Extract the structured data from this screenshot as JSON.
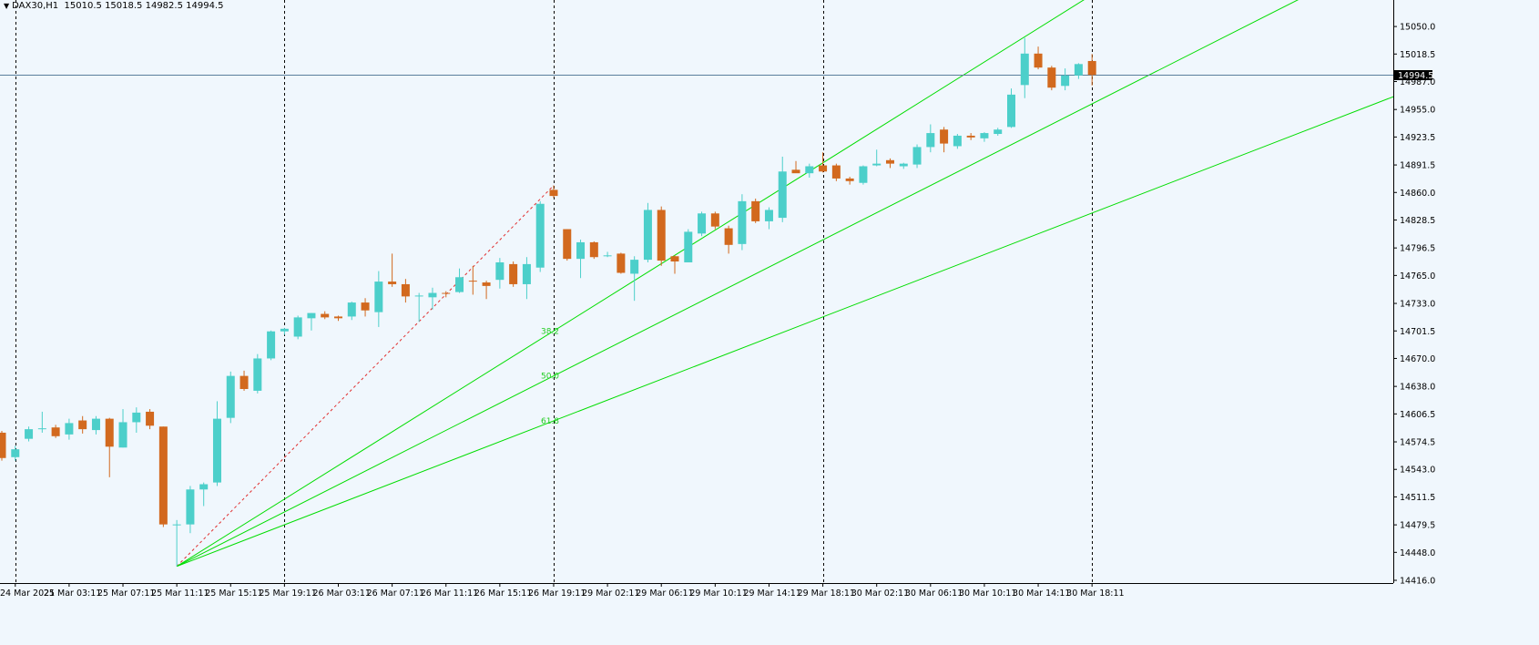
{
  "header": {
    "symbol": "DAX30,H1",
    "ohlc": "15010.5 15018.5 14982.5 14994.5",
    "menu_icon": "triangle-down-icon"
  },
  "colors": {
    "background": "#f0f7fd",
    "bull": "#4ccfca",
    "bear": "#d2691e",
    "fan": "#00dd00",
    "fib_label": "#22cc22",
    "trend_dashed": "#e03030",
    "price_line": "#5a7f9c",
    "axis": "#000000"
  },
  "chart_data": {
    "type": "candlestick",
    "ylim": [
      14416,
      15072
    ],
    "price_line": 14994.5,
    "price_label": "14994.5",
    "y_ticks": [
      "15050.0",
      "15018.5",
      "14987.0",
      "14955.0",
      "14923.5",
      "14891.5",
      "14860.0",
      "14828.5",
      "14796.5",
      "14765.0",
      "14733.0",
      "14701.5",
      "14670.0",
      "14638.0",
      "14606.5",
      "14574.5",
      "14543.0",
      "14511.5",
      "14479.5",
      "14448.0",
      "14416.0"
    ],
    "x_ticks": [
      "24 Mar 2021",
      "25 Mar 03:11",
      "25 Mar 07:11",
      "25 Mar 11:11",
      "25 Mar 15:11",
      "25 Mar 19:11",
      "26 Mar 03:11",
      "26 Mar 07:11",
      "26 Mar 11:11",
      "26 Mar 15:11",
      "26 Mar 19:11",
      "29 Mar 02:11",
      "29 Mar 06:11",
      "29 Mar 10:11",
      "29 Mar 14:11",
      "29 Mar 18:11",
      "30 Mar 02:11",
      "30 Mar 06:11",
      "30 Mar 10:11",
      "30 Mar 14:11",
      "30 Mar 18:11"
    ],
    "period_separators": [
      1,
      21,
      41,
      61,
      81
    ],
    "candles": [
      {
        "o": 14585,
        "h": 14587,
        "l": 14553,
        "c": 14556
      },
      {
        "o": 14557,
        "h": 14570,
        "l": 14553,
        "c": 14566
      },
      {
        "o": 14578,
        "h": 14592,
        "l": 14575,
        "c": 14589
      },
      {
        "o": 14589,
        "h": 14609,
        "l": 14585,
        "c": 14590
      },
      {
        "o": 14591,
        "h": 14594,
        "l": 14579,
        "c": 14581
      },
      {
        "o": 14583,
        "h": 14601,
        "l": 14577,
        "c": 14596
      },
      {
        "o": 14599,
        "h": 14604,
        "l": 14584,
        "c": 14589
      },
      {
        "o": 14588,
        "h": 14604,
        "l": 14583,
        "c": 14601
      },
      {
        "o": 14601,
        "h": 14602,
        "l": 14534,
        "c": 14569
      },
      {
        "o": 14568,
        "h": 14612,
        "l": 14568,
        "c": 14597
      },
      {
        "o": 14597,
        "h": 14614,
        "l": 14585,
        "c": 14608
      },
      {
        "o": 14609,
        "h": 14612,
        "l": 14589,
        "c": 14593
      },
      {
        "o": 14592,
        "h": 14592,
        "l": 14477,
        "c": 14480
      },
      {
        "o": 14480,
        "h": 14485,
        "l": 14432,
        "c": 14480
      },
      {
        "o": 14480,
        "h": 14524,
        "l": 14470,
        "c": 14520
      },
      {
        "o": 14520,
        "h": 14528,
        "l": 14501,
        "c": 14526
      },
      {
        "o": 14528,
        "h": 14621,
        "l": 14524,
        "c": 14601
      },
      {
        "o": 14602,
        "h": 14655,
        "l": 14596,
        "c": 14650
      },
      {
        "o": 14650,
        "h": 14656,
        "l": 14633,
        "c": 14635
      },
      {
        "o": 14633,
        "h": 14675,
        "l": 14630,
        "c": 14670
      },
      {
        "o": 14670,
        "h": 14702,
        "l": 14668,
        "c": 14701
      },
      {
        "o": 14701,
        "h": 14705,
        "l": 14697,
        "c": 14704
      },
      {
        "o": 14695,
        "h": 14719,
        "l": 14692,
        "c": 14717
      },
      {
        "o": 14716,
        "h": 14722,
        "l": 14702,
        "c": 14722
      },
      {
        "o": 14721,
        "h": 14724,
        "l": 14715,
        "c": 14717
      },
      {
        "o": 14718,
        "h": 14719,
        "l": 14713,
        "c": 14716
      },
      {
        "o": 14718,
        "h": 14735,
        "l": 14714,
        "c": 14734
      },
      {
        "o": 14734,
        "h": 14739,
        "l": 14718,
        "c": 14725
      },
      {
        "o": 14723,
        "h": 14770,
        "l": 14706,
        "c": 14758
      },
      {
        "o": 14758,
        "h": 14790,
        "l": 14752,
        "c": 14755
      },
      {
        "o": 14755,
        "h": 14761,
        "l": 14734,
        "c": 14741
      },
      {
        "o": 14741,
        "h": 14745,
        "l": 14712,
        "c": 14742
      },
      {
        "o": 14740,
        "h": 14751,
        "l": 14726,
        "c": 14745
      },
      {
        "o": 14745,
        "h": 14747,
        "l": 14740,
        "c": 14744
      },
      {
        "o": 14746,
        "h": 14773,
        "l": 14745,
        "c": 14763
      },
      {
        "o": 14759,
        "h": 14776,
        "l": 14743,
        "c": 14758
      },
      {
        "o": 14757,
        "h": 14759,
        "l": 14738,
        "c": 14753
      },
      {
        "o": 14760,
        "h": 14785,
        "l": 14750,
        "c": 14780
      },
      {
        "o": 14778,
        "h": 14781,
        "l": 14752,
        "c": 14755
      },
      {
        "o": 14755,
        "h": 14786,
        "l": 14738,
        "c": 14778
      },
      {
        "o": 14774,
        "h": 14850,
        "l": 14769,
        "c": 14847
      },
      {
        "o": 14863,
        "h": 14868,
        "l": 14854,
        "c": 14856
      },
      {
        "o": 14818,
        "h": 14818,
        "l": 14782,
        "c": 14784
      },
      {
        "o": 14784,
        "h": 14806,
        "l": 14762,
        "c": 14803
      },
      {
        "o": 14803,
        "h": 14804,
        "l": 14784,
        "c": 14786
      },
      {
        "o": 14788,
        "h": 14792,
        "l": 14786,
        "c": 14788
      },
      {
        "o": 14790,
        "h": 14791,
        "l": 14767,
        "c": 14768
      },
      {
        "o": 14767,
        "h": 14787,
        "l": 14736,
        "c": 14783
      },
      {
        "o": 14783,
        "h": 14848,
        "l": 14780,
        "c": 14840
      },
      {
        "o": 14840,
        "h": 14844,
        "l": 14776,
        "c": 14782
      },
      {
        "o": 14787,
        "h": 14788,
        "l": 14767,
        "c": 14781
      },
      {
        "o": 14780,
        "h": 14818,
        "l": 14780,
        "c": 14815
      },
      {
        "o": 14813,
        "h": 14838,
        "l": 14810,
        "c": 14836
      },
      {
        "o": 14836,
        "h": 14838,
        "l": 14818,
        "c": 14821
      },
      {
        "o": 14819,
        "h": 14822,
        "l": 14790,
        "c": 14800
      },
      {
        "o": 14801,
        "h": 14858,
        "l": 14794,
        "c": 14850
      },
      {
        "o": 14850,
        "h": 14853,
        "l": 14825,
        "c": 14827
      },
      {
        "o": 14827,
        "h": 14843,
        "l": 14818,
        "c": 14840
      },
      {
        "o": 14831,
        "h": 14901,
        "l": 14826,
        "c": 14884
      },
      {
        "o": 14886,
        "h": 14896,
        "l": 14883,
        "c": 14882
      },
      {
        "o": 14882,
        "h": 14893,
        "l": 14877,
        "c": 14890
      },
      {
        "o": 14891,
        "h": 14906,
        "l": 14883,
        "c": 14884
      },
      {
        "o": 14891,
        "h": 14893,
        "l": 14873,
        "c": 14876
      },
      {
        "o": 14876,
        "h": 14878,
        "l": 14869,
        "c": 14873
      },
      {
        "o": 14871,
        "h": 14891,
        "l": 14869,
        "c": 14890
      },
      {
        "o": 14891,
        "h": 14909,
        "l": 14890,
        "c": 14893
      },
      {
        "o": 14897,
        "h": 14899,
        "l": 14888,
        "c": 14893
      },
      {
        "o": 14890,
        "h": 14894,
        "l": 14887,
        "c": 14893
      },
      {
        "o": 14892,
        "h": 14915,
        "l": 14888,
        "c": 14912
      },
      {
        "o": 14912,
        "h": 14938,
        "l": 14906,
        "c": 14928
      },
      {
        "o": 14932,
        "h": 14935,
        "l": 14906,
        "c": 14916
      },
      {
        "o": 14913,
        "h": 14927,
        "l": 14910,
        "c": 14925
      },
      {
        "o": 14925,
        "h": 14928,
        "l": 14920,
        "c": 14923
      },
      {
        "o": 14922,
        "h": 14929,
        "l": 14918,
        "c": 14928
      },
      {
        "o": 14927,
        "h": 14934,
        "l": 14925,
        "c": 14932
      },
      {
        "o": 14935,
        "h": 14979,
        "l": 14934,
        "c": 14972
      },
      {
        "o": 14983,
        "h": 15037,
        "l": 14968,
        "c": 15019
      },
      {
        "o": 15019,
        "h": 15027,
        "l": 15001,
        "c": 15003
      },
      {
        "o": 15003,
        "h": 15005,
        "l": 14977,
        "c": 14980
      },
      {
        "o": 14982,
        "h": 15002,
        "l": 14977,
        "c": 14994
      },
      {
        "o": 14994,
        "h": 15008,
        "l": 14990,
        "c": 15007
      },
      {
        "o": 15010.5,
        "h": 15018.5,
        "l": 14982.5,
        "c": 14994.5
      }
    ],
    "fibo_fan": {
      "levels": [
        "38.2",
        "50.0",
        "61.8"
      ],
      "anchor_bar": 13,
      "anchor_price": 14432,
      "end_bar": 41,
      "end_price": 14868,
      "extend_to_bar": 105
    },
    "grid": false
  }
}
